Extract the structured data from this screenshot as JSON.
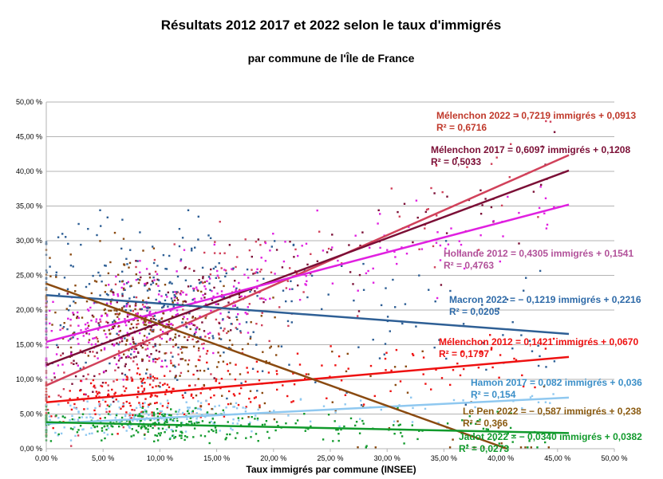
{
  "chart_data": {
    "type": "scatter",
    "title": "Résultats 2012 2017 et 2022 selon le taux d'immigrés",
    "subtitle": "par commune de l'Île de France",
    "xlabel": "Taux immigrés par commune (INSEE)",
    "ylabel": "",
    "xlim": [
      0,
      0.5
    ],
    "ylim": [
      0,
      0.5
    ],
    "x_ticks": [
      "0,00 %",
      "5,00 %",
      "10,00 %",
      "15,00 %",
      "20,00 %",
      "25,00 %",
      "30,00 %",
      "35,00 %",
      "40,00 %",
      "45,00 %",
      "50,00 %"
    ],
    "y_ticks": [
      "0,00 %",
      "5,00 %",
      "10,00 %",
      "15,00 %",
      "20,00 %",
      "25,00 %",
      "30,00 %",
      "35,00 %",
      "40,00 %",
      "45,00 %",
      "50,00 %"
    ],
    "grid": "horizontal",
    "trendline_x_range": [
      0,
      0.46
    ],
    "series": [
      {
        "equation": "Mélenchon 2022 = 0,7219 immigrés + 0,0913",
        "r2": "R² = 0,6716",
        "slope": 0.7219,
        "intercept": 0.0913,
        "color": "#d1415a",
        "label_color": "#c0392b"
      },
      {
        "equation": "Mélenchon 2017 = 0,6097 immigrés + 0,1208",
        "r2": "R² = 0,5033",
        "slope": 0.6097,
        "intercept": 0.1208,
        "color": "#7b0f36",
        "label_color": "#7b0f36"
      },
      {
        "equation": "Hollande 2012 = 0,4305 immigrés + 0,1541",
        "r2": "R² = 0,4763",
        "slope": 0.4305,
        "intercept": 0.1541,
        "color": "#e020e0",
        "label_color": "#b2529a"
      },
      {
        "equation": "Macron 2022 = − 0,1219 immigrés + 0,2216",
        "r2": "R² = 0,0205",
        "slope": -0.1219,
        "intercept": 0.2216,
        "color": "#2e5f95",
        "label_color": "#2e6aa8"
      },
      {
        "equation": "Mélenchon 2012 = 0,1421 immigrés + 0,0670",
        "r2": "R² = 0,1797",
        "slope": 0.1421,
        "intercept": 0.067,
        "color": "#ee1111",
        "label_color": "#ee1111"
      },
      {
        "equation": "Hamon 2017 = 0,082 immigrés + 0,036",
        "r2": "R² = 0,154",
        "slope": 0.082,
        "intercept": 0.036,
        "color": "#8fc8f0",
        "label_color": "#3b8fc8"
      },
      {
        "equation": "Le Pen 2022 = − 0,587 immigrés + 0,238",
        "r2": "R² = 0,366",
        "slope": -0.587,
        "intercept": 0.238,
        "color": "#8a4a10",
        "label_color": "#8a5a10"
      },
      {
        "equation": "Jadot 2022 = − 0,0340 immigrés + 0,0382",
        "r2": "R² = 0,0273",
        "slope": -0.034,
        "intercept": 0.0382,
        "color": "#119a2c",
        "label_color": "#119a2c"
      }
    ]
  }
}
